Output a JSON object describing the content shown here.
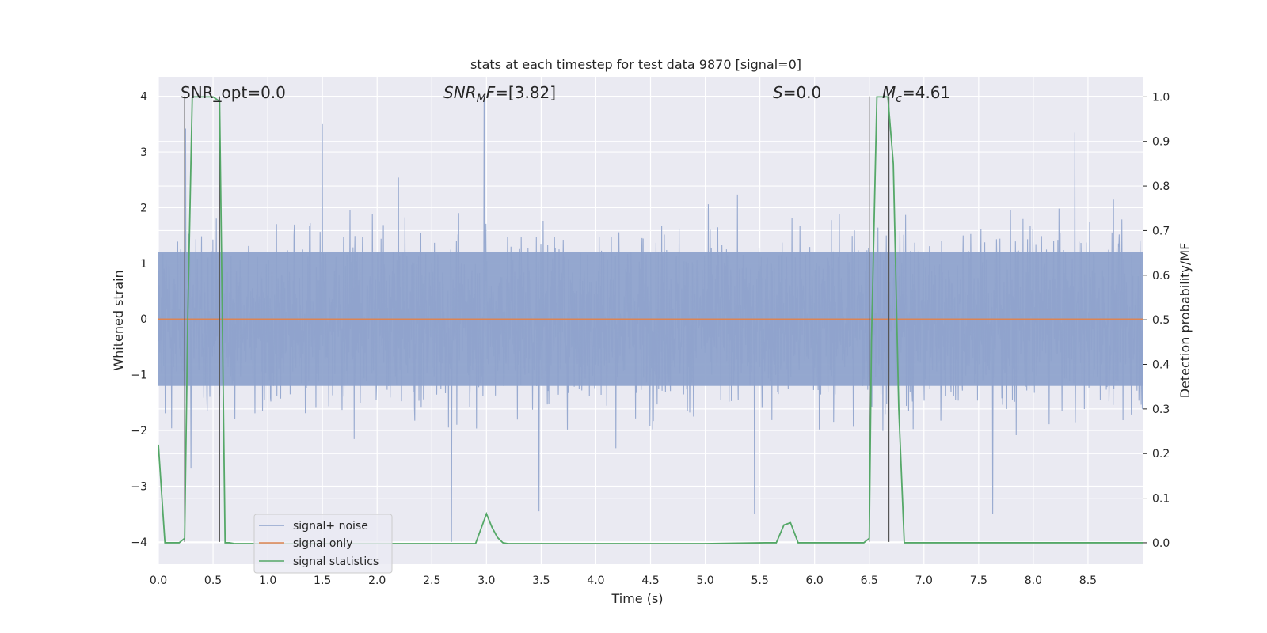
{
  "chart_data": {
    "type": "line",
    "title": "stats at each timestep for test data 9870 [signal=0]",
    "xlabel": "Time (s)",
    "ylabel": "Whitened strain",
    "y2label": "Detection probability/MF",
    "xlim": [
      0.0,
      9.0
    ],
    "ylim": [
      -4.4,
      4.35
    ],
    "y2lim": [
      -0.048,
      1.045
    ],
    "xticks": [
      "0.0",
      "0.5",
      "1.0",
      "1.5",
      "2.0",
      "2.5",
      "3.0",
      "3.5",
      "4.0",
      "4.5",
      "5.0",
      "5.5",
      "6.0",
      "6.5",
      "7.0",
      "7.5",
      "8.0",
      "8.5"
    ],
    "yticks": [
      "−4",
      "−3",
      "−2",
      "−1",
      "0",
      "1",
      "2",
      "3",
      "4"
    ],
    "y2ticks": [
      "0.0",
      "0.1",
      "0.2",
      "0.3",
      "0.4",
      "0.5",
      "0.6",
      "0.7",
      "0.8",
      "0.9",
      "1.0"
    ],
    "annotations": {
      "snr_opt": "SNR_opt=0.0",
      "snr_mf_main": "SNR",
      "snr_mf_sub": "M",
      "snr_mf_rest": "F=[3.82]",
      "s_main": "S",
      "s_rest": "=0.0",
      "mc_main": "M",
      "mc_sub": "c",
      "mc_rest": "=4.61"
    },
    "vertical_markers_s": [
      0.24,
      0.56,
      6.5,
      6.68
    ],
    "series": [
      {
        "name": "signal+ noise",
        "color": "#8fa3cc",
        "description": "whitened strain, noise only, amplitude roughly within -4 to 4",
        "spikes": [
          {
            "x": 0.25,
            "y": 3.42
          },
          {
            "x": 1.5,
            "y": 3.5
          },
          {
            "x": 2.98,
            "y": 4.0
          },
          {
            "x": 2.68,
            "y": -4.0
          },
          {
            "x": 6.68,
            "y": 3.8
          },
          {
            "x": 8.38,
            "y": 3.35
          },
          {
            "x": 7.63,
            "y": -3.5
          },
          {
            "x": 5.45,
            "y": -3.5
          },
          {
            "x": 3.48,
            "y": -3.45
          }
        ]
      },
      {
        "name": "signal only",
        "color": "#dd8452",
        "values_note": "flat zero",
        "x": [
          0.0,
          9.0
        ],
        "y": [
          0.0,
          0.0
        ]
      },
      {
        "name": "signal statistics",
        "color": "#55a868",
        "axis": "right",
        "x": [
          0.0,
          0.06,
          0.19,
          0.24,
          0.27,
          0.31,
          0.5,
          0.56,
          0.61,
          0.65,
          0.7,
          2.9,
          3.0,
          3.05,
          3.1,
          3.15,
          3.2,
          5.0,
          5.55,
          5.65,
          5.72,
          5.78,
          5.85,
          5.95,
          6.2,
          6.45,
          6.5,
          6.52,
          6.57,
          6.67,
          6.72,
          6.77,
          6.82,
          7.0,
          9.0
        ],
        "y": [
          0.22,
          0.0,
          0.0,
          0.01,
          0.52,
          1.0,
          1.0,
          0.99,
          0.0,
          0.0,
          -0.002,
          -0.002,
          0.065,
          0.035,
          0.012,
          0.0,
          -0.002,
          -0.002,
          0.0,
          0.0,
          0.04,
          0.045,
          0.0,
          0.0,
          0.0,
          0.0,
          0.01,
          0.45,
          1.0,
          1.0,
          0.85,
          0.3,
          0.0,
          0.0,
          0.0
        ]
      }
    ],
    "legend": {
      "placement": "lower-left",
      "entries": [
        "signal+ noise",
        "signal only",
        "signal statistics"
      ]
    },
    "colors": {
      "background": "#eaeaf2",
      "grid": "#ffffff",
      "marker": "#555555"
    }
  }
}
